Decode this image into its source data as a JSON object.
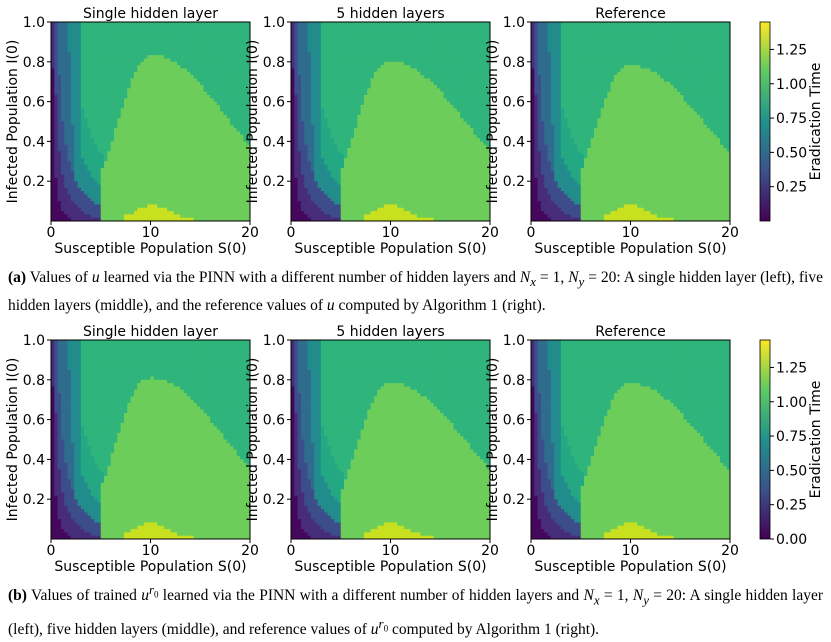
{
  "colorbar": {
    "label": "Eradication Time",
    "colors": [
      "#440154",
      "#3b528b",
      "#21918c",
      "#5ec962",
      "#fde725"
    ]
  },
  "chart_data": [
    {
      "type": "contour",
      "id": "a",
      "panels": [
        {
          "title": "Single hidden layer",
          "peak_s": 9.7,
          "peak_i": 0.86
        },
        {
          "title": "5 hidden layers",
          "peak_s": 9.5,
          "peak_i": 0.83
        },
        {
          "title": "Reference",
          "peak_s": 9.5,
          "peak_i": 0.81
        }
      ],
      "xlabel": "Susceptible Population S(0)",
      "ylabel": "Infected Population I(0)",
      "xlim": [
        0,
        20
      ],
      "ylim": [
        0,
        1.0
      ],
      "xticks": [
        "0",
        "10",
        "20"
      ],
      "yticks": [
        "0.2",
        "0.4",
        "0.6",
        "0.8",
        "1.0"
      ],
      "colorbar_ticks": [
        "0.25",
        "0.50",
        "0.75",
        "1.00",
        "1.25"
      ],
      "colorbar_range": [
        0,
        1.45
      ],
      "levels": [
        0.15,
        0.3,
        0.45,
        0.6,
        0.75,
        0.9,
        1.05,
        1.2,
        1.35
      ],
      "colors": [
        "#46085c",
        "#472d7b",
        "#3d4d8a",
        "#2f6c8e",
        "#228c8d",
        "#23a883",
        "#2fb47c",
        "#6ccd5a",
        "#c8e020"
      ]
    },
    {
      "type": "contour",
      "id": "b",
      "panels": [
        {
          "title": "Single hidden layer",
          "peak_s": 9.5,
          "peak_i": 0.84
        },
        {
          "title": "5 hidden layers",
          "peak_s": 9.6,
          "peak_i": 0.81
        },
        {
          "title": "Reference",
          "peak_s": 9.5,
          "peak_i": 0.81
        }
      ],
      "xlabel": "Susceptible Population S(0)",
      "ylabel": "Infected Population I(0)",
      "xlim": [
        0,
        20
      ],
      "ylim": [
        0,
        1.0
      ],
      "xticks": [
        "0",
        "10",
        "20"
      ],
      "yticks": [
        "0.2",
        "0.4",
        "0.6",
        "0.8",
        "1.0"
      ],
      "colorbar_ticks": [
        "0.00",
        "0.25",
        "0.50",
        "0.75",
        "1.00",
        "1.25"
      ],
      "colorbar_range": [
        0,
        1.45
      ],
      "levels": [
        0.15,
        0.3,
        0.45,
        0.6,
        0.75,
        0.9,
        1.05,
        1.2,
        1.35
      ],
      "colors": [
        "#46085c",
        "#472d7b",
        "#3d4d8a",
        "#2f6c8e",
        "#228c8d",
        "#23a883",
        "#2fb47c",
        "#6ccd5a",
        "#c8e020"
      ]
    }
  ],
  "captions": {
    "a": {
      "label": "(a)",
      "text1": " Values of ",
      "var": "u",
      "text2": " learned via the PINN with a different number of hidden layers and ",
      "nx": "N",
      "nx_sub": "x",
      "eq1": " = 1, ",
      "ny": "N",
      "ny_sub": "y",
      "eq2": " = 20: A single hidden layer (left), five hidden layers (middle), and the reference values of ",
      "var2": "u",
      "text3": " computed by Algorithm 1 (right)."
    },
    "b": {
      "label": "(b)",
      "text1": " Values of trained ",
      "var": "u",
      "var_sup": "r",
      "var_sup2": "0",
      "text2": " learned via the PINN with a different number of hidden layers and ",
      "nx": "N",
      "nx_sub": "x",
      "eq1": " = 1, ",
      "ny": "N",
      "ny_sub": "y",
      "eq2": " = 20: A single hidden layer (left), five hidden layers (middle), and reference values of ",
      "var2": "u",
      "text3": " computed by Algorithm 1 (right)."
    }
  }
}
